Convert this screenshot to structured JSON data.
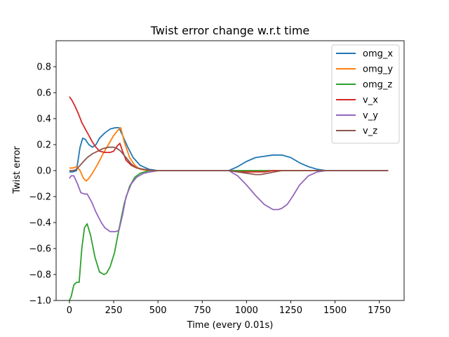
{
  "chart_data": {
    "type": "line",
    "title": "Twist error change w.r.t time",
    "xlabel": "Time (every 0.01s)",
    "ylabel": "Twist error",
    "xlim": [
      -75,
      1890
    ],
    "ylim": [
      -1.0,
      1.0
    ],
    "xticks": [
      0,
      250,
      500,
      750,
      1000,
      1250,
      1500,
      1750
    ],
    "yticks": [
      -1.0,
      -0.8,
      -0.6,
      -0.4,
      -0.2,
      0.0,
      0.2,
      0.4,
      0.6,
      0.8
    ],
    "ytick_labels": [
      "−1.0",
      "−0.8",
      "−0.6",
      "−0.4",
      "−0.2",
      "0.0",
      "0.2",
      "0.4",
      "0.6",
      "0.8"
    ],
    "grid": false,
    "legend_position": "top-right",
    "series": [
      {
        "name": "omg_x",
        "color": "#1f77b4",
        "x": [
          0,
          20,
          40,
          60,
          75,
          90,
          110,
          130,
          150,
          170,
          200,
          230,
          260,
          280,
          300,
          330,
          360,
          400,
          450,
          500,
          550,
          900,
          950,
          1000,
          1050,
          1100,
          1150,
          1200,
          1250,
          1300,
          1350,
          1400,
          1450,
          1800
        ],
        "y": [
          -0.01,
          -0.01,
          0.0,
          0.18,
          0.25,
          0.24,
          0.2,
          0.18,
          0.2,
          0.25,
          0.29,
          0.32,
          0.33,
          0.33,
          0.27,
          0.18,
          0.1,
          0.04,
          0.01,
          0.0,
          0.0,
          0.0,
          0.03,
          0.07,
          0.1,
          0.11,
          0.12,
          0.12,
          0.1,
          0.06,
          0.03,
          0.01,
          0.0,
          0.0
        ]
      },
      {
        "name": "omg_y",
        "color": "#ff7f0e",
        "x": [
          0,
          20,
          40,
          60,
          80,
          95,
          110,
          130,
          160,
          190,
          220,
          250,
          280,
          290,
          310,
          340,
          370,
          400,
          450,
          500,
          550,
          900,
          1000,
          1100,
          1200,
          1300,
          1400,
          1800
        ],
        "y": [
          0.02,
          0.02,
          0.03,
          0.0,
          -0.06,
          -0.08,
          -0.06,
          -0.02,
          0.05,
          0.13,
          0.2,
          0.27,
          0.32,
          0.33,
          0.22,
          0.1,
          0.04,
          0.01,
          0.0,
          0.0,
          0.0,
          0.0,
          0.0,
          0.0,
          0.0,
          0.0,
          0.0,
          0.0
        ]
      },
      {
        "name": "omg_z",
        "color": "#2ca02c",
        "x": [
          0,
          10,
          25,
          40,
          55,
          70,
          85,
          100,
          120,
          145,
          170,
          195,
          210,
          230,
          255,
          280,
          310,
          340,
          370,
          400,
          450,
          500,
          550,
          1800
        ],
        "y": [
          -1.0,
          -0.97,
          -0.88,
          -0.86,
          -0.86,
          -0.6,
          -0.44,
          -0.41,
          -0.5,
          -0.67,
          -0.78,
          -0.8,
          -0.79,
          -0.74,
          -0.63,
          -0.45,
          -0.25,
          -0.12,
          -0.05,
          -0.02,
          0.0,
          0.0,
          0.0,
          0.0
        ]
      },
      {
        "name": "v_x",
        "color": "#d62728",
        "x": [
          0,
          15,
          30,
          50,
          70,
          90,
          110,
          130,
          150,
          170,
          200,
          230,
          250,
          270,
          285,
          300,
          320,
          350,
          380,
          420,
          470,
          520,
          900,
          950,
          1000,
          1050,
          1100,
          1150,
          1200,
          1250,
          1300,
          1350,
          1400,
          1450,
          1800
        ],
        "y": [
          0.57,
          0.54,
          0.5,
          0.44,
          0.37,
          0.32,
          0.27,
          0.22,
          0.18,
          0.15,
          0.14,
          0.14,
          0.15,
          0.19,
          0.21,
          0.15,
          0.08,
          0.04,
          0.02,
          0.01,
          0.0,
          0.0,
          0.0,
          -0.01,
          -0.01,
          -0.01,
          -0.01,
          0.0,
          0.0,
          0.0,
          0.0,
          0.0,
          0.0,
          0.0,
          0.0
        ]
      },
      {
        "name": "v_y",
        "color": "#9467bd",
        "x": [
          0,
          10,
          25,
          45,
          65,
          85,
          100,
          125,
          150,
          180,
          200,
          230,
          260,
          280,
          300,
          320,
          350,
          380,
          420,
          460,
          500,
          550,
          900,
          950,
          1000,
          1050,
          1100,
          1150,
          1180,
          1200,
          1230,
          1260,
          1300,
          1350,
          1400,
          1450,
          1800
        ],
        "y": [
          -0.06,
          -0.04,
          -0.04,
          -0.1,
          -0.17,
          -0.18,
          -0.18,
          -0.24,
          -0.32,
          -0.4,
          -0.44,
          -0.47,
          -0.47,
          -0.46,
          -0.34,
          -0.2,
          -0.1,
          -0.05,
          -0.02,
          -0.01,
          0.0,
          0.0,
          0.0,
          -0.04,
          -0.11,
          -0.19,
          -0.26,
          -0.3,
          -0.3,
          -0.29,
          -0.26,
          -0.2,
          -0.11,
          -0.04,
          -0.01,
          0.0,
          0.0
        ]
      },
      {
        "name": "v_z",
        "color": "#8c564b",
        "x": [
          0,
          20,
          40,
          60,
          80,
          100,
          130,
          160,
          190,
          220,
          250,
          270,
          290,
          320,
          350,
          380,
          420,
          470,
          520,
          900,
          950,
          1000,
          1050,
          1080,
          1120,
          1160,
          1200,
          1250,
          1300,
          1350,
          1400,
          1800
        ],
        "y": [
          0.0,
          0.0,
          0.01,
          0.04,
          0.07,
          0.1,
          0.13,
          0.15,
          0.17,
          0.18,
          0.18,
          0.17,
          0.15,
          0.1,
          0.05,
          0.02,
          0.01,
          0.0,
          0.0,
          0.0,
          -0.01,
          -0.02,
          -0.03,
          -0.03,
          -0.02,
          -0.01,
          0.0,
          0.0,
          0.0,
          0.0,
          0.0,
          0.0
        ]
      }
    ]
  }
}
